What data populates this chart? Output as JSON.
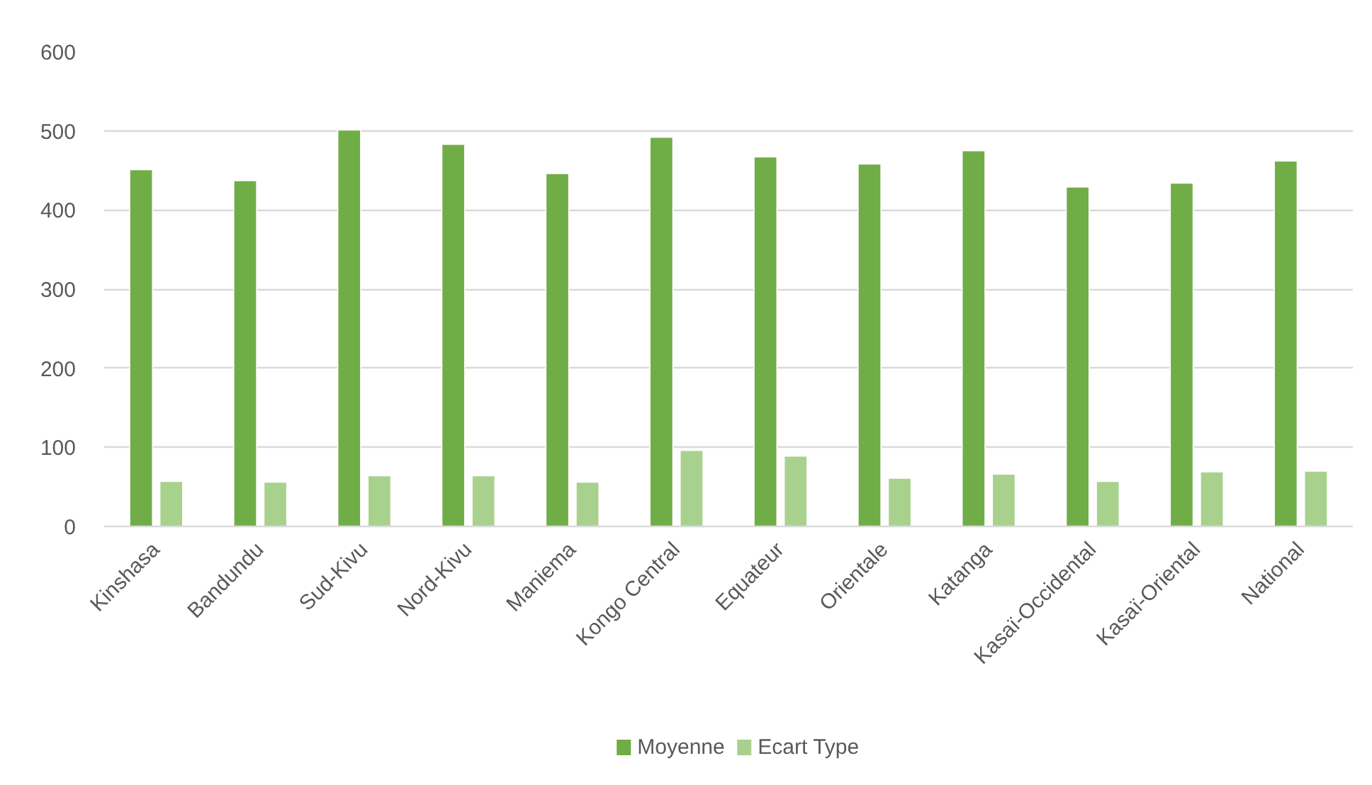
{
  "chart_data": {
    "type": "bar",
    "categories": [
      "Kinshasa",
      "Bandundu",
      "Sud-Kivu",
      "Nord-Kivu",
      "Maniema",
      "Kongo Central",
      "Equateur",
      "Orientale",
      "Katanga",
      "Kasaï-Occidental",
      "Kasaï-Oriental",
      "National"
    ],
    "series": [
      {
        "name": "Moyenne",
        "color": "#70ad47",
        "values": [
          451,
          437,
          501,
          483,
          446,
          492,
          467,
          458,
          475,
          429,
          434,
          462
        ]
      },
      {
        "name": "Ecart Type",
        "color": "#a9d18e",
        "values": [
          57,
          56,
          64,
          64,
          56,
          96,
          89,
          61,
          66,
          57,
          69,
          70
        ]
      }
    ],
    "ylim": [
      0,
      600
    ],
    "yticks": [
      0,
      100,
      200,
      300,
      400,
      500,
      600
    ],
    "grid": "y",
    "legend": "bottom"
  }
}
